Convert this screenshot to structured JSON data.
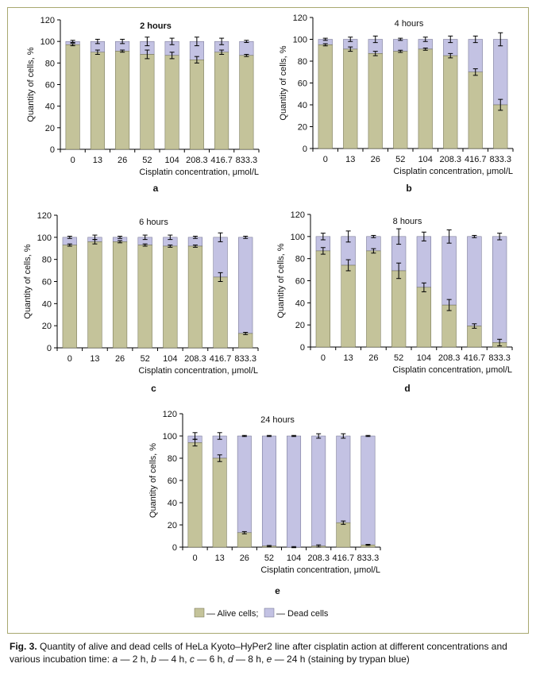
{
  "colors": {
    "alive": "#c4c39a",
    "dead": "#c3c2e3",
    "axis": "#000000",
    "frame": "#a8a870"
  },
  "chart_data": [
    {
      "type": "bar",
      "stacked": true,
      "panel": "a",
      "title": "2 hours",
      "categories": [
        "0",
        "13",
        "26",
        "52",
        "104",
        "208.3",
        "416.7",
        "833.3"
      ],
      "series": [
        {
          "name": "Alive cells",
          "values": [
            97,
            90,
            91,
            88,
            87,
            83,
            90,
            87
          ],
          "errors": [
            1,
            2,
            1,
            4,
            3,
            3,
            2,
            1
          ]
        },
        {
          "name": "Dead cells",
          "values": [
            3,
            10,
            9,
            12,
            13,
            17,
            10,
            13
          ],
          "errors": [
            1,
            2,
            2,
            4,
            3,
            4,
            3,
            1
          ]
        }
      ],
      "xlabel": "Cisplatin concentration, μmol/L",
      "ylabel": "Quantity of cells, %",
      "ylim": [
        0,
        120
      ],
      "yticks": [
        0,
        20,
        40,
        60,
        80,
        100,
        120
      ],
      "grid": false
    },
    {
      "type": "bar",
      "stacked": true,
      "panel": "b",
      "title": "4 hours",
      "categories": [
        "0",
        "13",
        "26",
        "52",
        "104",
        "208.3",
        "416.7",
        "833.3"
      ],
      "series": [
        {
          "name": "Alive cells",
          "values": [
            95,
            91,
            87,
            89,
            91,
            85,
            70,
            40
          ],
          "errors": [
            1,
            2,
            2,
            1,
            1,
            2,
            3,
            5
          ]
        },
        {
          "name": "Dead cells",
          "values": [
            5,
            9,
            13,
            11,
            9,
            15,
            30,
            60
          ],
          "errors": [
            1,
            2,
            3,
            1,
            2,
            3,
            3,
            6
          ]
        }
      ],
      "xlabel": "Cisplatin concentration, μmol/L",
      "ylabel": "Quantity of cells, %",
      "ylim": [
        0,
        120
      ],
      "yticks": [
        0,
        20,
        40,
        60,
        80,
        100,
        120
      ],
      "grid": false
    },
    {
      "type": "bar",
      "stacked": true,
      "panel": "c",
      "title": "6 hours",
      "categories": [
        "0",
        "13",
        "26",
        "52",
        "104",
        "208.3",
        "416.7",
        "833.3"
      ],
      "series": [
        {
          "name": "Alive cells",
          "values": [
            93,
            96,
            96,
            93,
            92,
            92,
            64,
            13
          ],
          "errors": [
            1,
            2,
            1,
            1,
            1,
            1,
            4,
            1
          ]
        },
        {
          "name": "Dead cells",
          "values": [
            7,
            4,
            4,
            7,
            8,
            8,
            36,
            87
          ],
          "errors": [
            1,
            2,
            1,
            2,
            2,
            1,
            4,
            1
          ]
        }
      ],
      "xlabel": "Cisplatin concentration, μmol/L",
      "ylabel": "Quantity of cells, %",
      "ylim": [
        0,
        120
      ],
      "yticks": [
        0,
        20,
        40,
        60,
        80,
        100,
        120
      ],
      "grid": false
    },
    {
      "type": "bar",
      "stacked": true,
      "panel": "d",
      "title": "8 hours",
      "categories": [
        "0",
        "13",
        "26",
        "52",
        "104",
        "208.3",
        "416.7",
        "833.3"
      ],
      "series": [
        {
          "name": "Alive cells",
          "values": [
            87,
            74,
            87,
            69,
            54,
            38,
            19,
            4
          ],
          "errors": [
            3,
            5,
            2,
            7,
            4,
            5,
            2,
            3
          ]
        },
        {
          "name": "Dead cells",
          "values": [
            13,
            26,
            13,
            31,
            46,
            62,
            81,
            96
          ],
          "errors": [
            3,
            5,
            1,
            7,
            4,
            6,
            1,
            3
          ]
        }
      ],
      "xlabel": "Cisplatin concentration, μmol/L",
      "ylabel": "Quantity of cells, %",
      "ylim": [
        0,
        120
      ],
      "yticks": [
        0,
        20,
        40,
        60,
        80,
        100,
        120
      ],
      "grid": false
    },
    {
      "type": "bar",
      "stacked": true,
      "panel": "e",
      "title": "24 hours",
      "categories": [
        "0",
        "13",
        "26",
        "52",
        "104",
        "208.3",
        "416.7",
        "833.3"
      ],
      "series": [
        {
          "name": "Alive cells",
          "values": [
            94,
            80,
            13,
            1,
            0,
            1,
            22,
            2
          ],
          "errors": [
            3,
            3,
            1,
            0.5,
            0.5,
            1,
            1.5,
            0.5
          ]
        },
        {
          "name": "Dead cells",
          "values": [
            6,
            20,
            87,
            99,
            100,
            99,
            78,
            98
          ],
          "errors": [
            3,
            3,
            0.5,
            0.5,
            0.5,
            2,
            2,
            0.5
          ]
        }
      ],
      "xlabel": "Cisplatin concentration, μmol/L",
      "ylabel": "Quantity of cells, %",
      "ylim": [
        0,
        120
      ],
      "yticks": [
        0,
        20,
        40,
        60,
        80,
        100,
        120
      ],
      "grid": false
    }
  ],
  "legend": {
    "alive": "— Alive cells;",
    "dead": "— Dead cells"
  },
  "caption": {
    "fig_label": "Fig. 3.",
    "text": "Quantity of alive and dead cells of HeLa Kyoto–HyPer2 line after cisplatin action at different concentrations and various incubation time:",
    "items": [
      {
        "key": "a",
        "text": "— 2 h,"
      },
      {
        "key": "b",
        "text": "— 4 h,"
      },
      {
        "key": "c",
        "text": "— 6 h,"
      },
      {
        "key": "d",
        "text": "— 8 h,"
      },
      {
        "key": "e",
        "text": "— 24 h (staining by trypan blue)"
      }
    ]
  }
}
